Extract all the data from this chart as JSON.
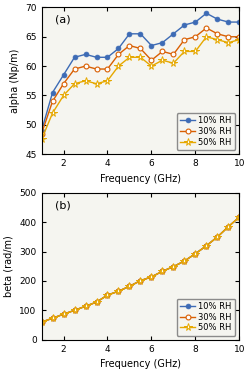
{
  "freq": [
    1.0,
    1.5,
    2.0,
    2.5,
    3.0,
    3.5,
    4.0,
    4.5,
    5.0,
    5.5,
    6.0,
    6.5,
    7.0,
    7.5,
    8.0,
    8.5,
    9.0,
    9.5,
    10.0
  ],
  "alpha_10": [
    49.0,
    55.5,
    58.5,
    61.5,
    62.0,
    61.5,
    61.5,
    63.0,
    65.5,
    65.5,
    63.5,
    64.0,
    65.5,
    67.0,
    67.5,
    69.0,
    68.0,
    67.5,
    67.5
  ],
  "alpha_30": [
    48.5,
    54.0,
    57.0,
    59.5,
    60.0,
    59.5,
    59.5,
    62.0,
    63.5,
    63.0,
    61.0,
    62.5,
    62.0,
    64.5,
    65.0,
    66.5,
    65.5,
    65.0,
    65.0
  ],
  "alpha_50": [
    47.5,
    52.0,
    55.0,
    57.0,
    57.5,
    57.0,
    57.5,
    60.0,
    61.5,
    61.5,
    60.0,
    61.0,
    60.5,
    62.5,
    62.5,
    65.0,
    64.5,
    64.0,
    64.5
  ],
  "beta_values": [
    60.0,
    73.0,
    87.0,
    100.0,
    114.0,
    128.0,
    152.0,
    165.0,
    182.0,
    201.0,
    214.0,
    233.0,
    249.0,
    268.0,
    293.0,
    320.0,
    350.0,
    385.0,
    418.0
  ],
  "color_10": "#3d6bb5",
  "color_30": "#d95f02",
  "color_50": "#e6a800",
  "title_a": "(a)",
  "title_b": "(b)",
  "xlabel": "Frequency (GHz)",
  "ylabel_a": "alpha (Np/m)",
  "ylabel_b": "beta (rad/m)",
  "legend_10": "10% RH",
  "legend_30": "30% RH",
  "legend_50": "50% RH",
  "alpha_ylim": [
    45,
    70
  ],
  "beta_ylim": [
    0,
    500
  ],
  "xlim": [
    1,
    10
  ],
  "alpha_yticks": [
    45,
    50,
    55,
    60,
    65,
    70
  ],
  "beta_yticks": [
    0,
    100,
    200,
    300,
    400,
    500
  ],
  "xticks": [
    2,
    4,
    6,
    8,
    10
  ]
}
